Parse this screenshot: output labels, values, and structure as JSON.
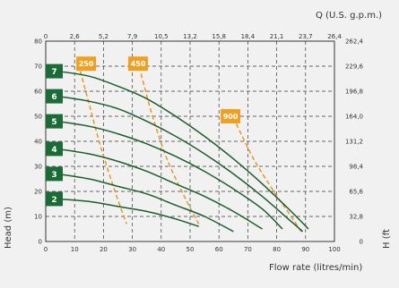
{
  "chart_data": {
    "type": "line",
    "top_axis_label": "Q (U.S. g.p.m.)",
    "top_ticks": [
      "0",
      "2,6",
      "5,2",
      "7,9",
      "10,5",
      "13,2",
      "15,8",
      "18,4",
      "21,1",
      "23,7",
      "26,4"
    ],
    "xlabel": "Flow rate (litres/min)",
    "xlim": [
      0,
      100
    ],
    "x_ticks": [
      "0",
      "10",
      "20",
      "30",
      "40",
      "50",
      "60",
      "70",
      "80",
      "90",
      "100"
    ],
    "ylabel": "Head (m)",
    "ylim": [
      0,
      80
    ],
    "y_ticks": [
      "0",
      "10",
      "20",
      "30",
      "40",
      "50",
      "60",
      "70",
      "80"
    ],
    "right_label": "H (ft",
    "right_ticks": [
      "0",
      "32,8",
      "65,6",
      "98,4",
      "131,2",
      "164,0",
      "196,8",
      "229,6",
      "262,4"
    ],
    "grid": true,
    "colors": {
      "curve": "#1a5e2c",
      "label_bg": "#1a6b35",
      "efficiency": "#f0a020",
      "efficiency_line": "#e8901a"
    },
    "series": [
      {
        "name": "2",
        "label_y": 17,
        "points": [
          [
            4,
            17
          ],
          [
            15,
            16
          ],
          [
            25,
            14
          ],
          [
            35,
            12
          ],
          [
            45,
            9
          ],
          [
            53,
            6
          ]
        ]
      },
      {
        "name": "3",
        "label_y": 27,
        "points": [
          [
            4,
            27
          ],
          [
            15,
            25
          ],
          [
            25,
            22
          ],
          [
            35,
            19
          ],
          [
            45,
            14.5
          ],
          [
            55,
            10
          ],
          [
            65,
            4
          ]
        ]
      },
      {
        "name": "4",
        "label_y": 37,
        "points": [
          [
            4,
            37
          ],
          [
            15,
            35
          ],
          [
            25,
            32
          ],
          [
            35,
            28
          ],
          [
            45,
            23
          ],
          [
            55,
            18
          ],
          [
            65,
            12
          ],
          [
            75,
            5
          ]
        ]
      },
      {
        "name": "5",
        "label_y": 48,
        "points": [
          [
            4,
            48
          ],
          [
            15,
            46
          ],
          [
            25,
            43
          ],
          [
            35,
            39
          ],
          [
            45,
            34
          ],
          [
            55,
            28
          ],
          [
            65,
            21
          ],
          [
            75,
            13
          ],
          [
            82,
            5
          ]
        ]
      },
      {
        "name": "6",
        "label_y": 58,
        "points": [
          [
            4,
            58
          ],
          [
            15,
            56
          ],
          [
            25,
            53
          ],
          [
            35,
            48
          ],
          [
            45,
            42
          ],
          [
            55,
            35
          ],
          [
            65,
            27
          ],
          [
            75,
            18
          ],
          [
            85,
            8
          ],
          [
            89,
            4
          ]
        ]
      },
      {
        "name": "7",
        "label_y": 68,
        "points": [
          [
            4,
            68
          ],
          [
            15,
            66
          ],
          [
            25,
            62
          ],
          [
            35,
            57
          ],
          [
            45,
            50
          ],
          [
            55,
            42
          ],
          [
            65,
            33
          ],
          [
            75,
            23
          ],
          [
            85,
            12
          ],
          [
            91,
            5
          ]
        ]
      }
    ],
    "efficiency_lines": [
      {
        "name": "250",
        "label_x": 14,
        "label_y": 71,
        "points": [
          [
            12,
            68
          ],
          [
            15,
            55
          ],
          [
            19,
            38
          ],
          [
            24,
            20
          ],
          [
            28,
            7
          ]
        ]
      },
      {
        "name": "450",
        "label_x": 32,
        "label_y": 71,
        "points": [
          [
            33,
            67
          ],
          [
            37,
            50
          ],
          [
            42,
            33
          ],
          [
            48,
            18
          ],
          [
            53,
            7
          ]
        ]
      },
      {
        "name": "900",
        "label_x": 64,
        "label_y": 50,
        "points": [
          [
            66,
            47
          ],
          [
            72,
            33
          ],
          [
            79,
            20
          ],
          [
            85,
            10
          ],
          [
            89,
            3
          ]
        ]
      }
    ]
  }
}
